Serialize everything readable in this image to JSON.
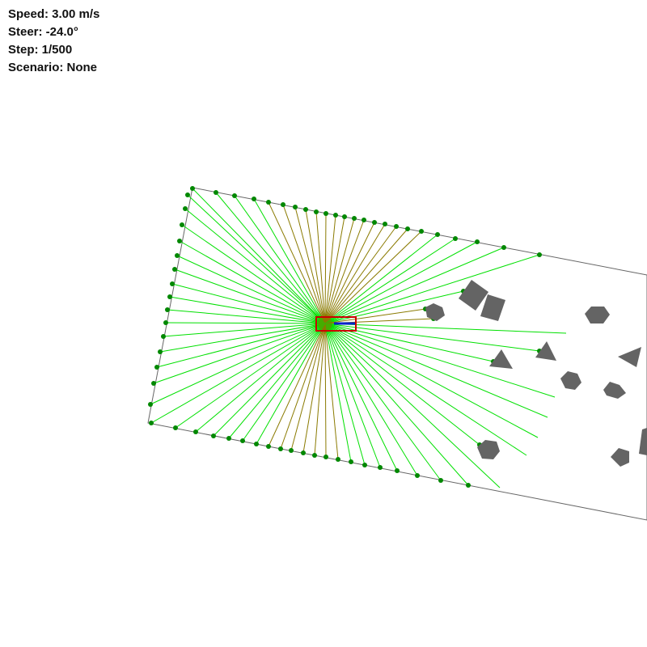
{
  "hud": {
    "speed": "Speed: 3.00 m/s",
    "steer": "Steer: -24.0°",
    "step": "Step: 1/500",
    "scenario": "Scenario: None"
  },
  "colors": {
    "background": "#ffffff",
    "boundary": "#666666",
    "obstacle": "#646464",
    "ray_hit": "#00e000",
    "ray_near": "#8a7a00",
    "hit_point": "#008800",
    "vehicle_outline": "#cc0000",
    "heading": "#0022cc"
  },
  "vehicle": {
    "heading_deg": 0,
    "steer_deg": -24.0,
    "speed_mps": 3.0
  },
  "lidar": {
    "ray_count": 72
  },
  "obstacle_count": 14
}
